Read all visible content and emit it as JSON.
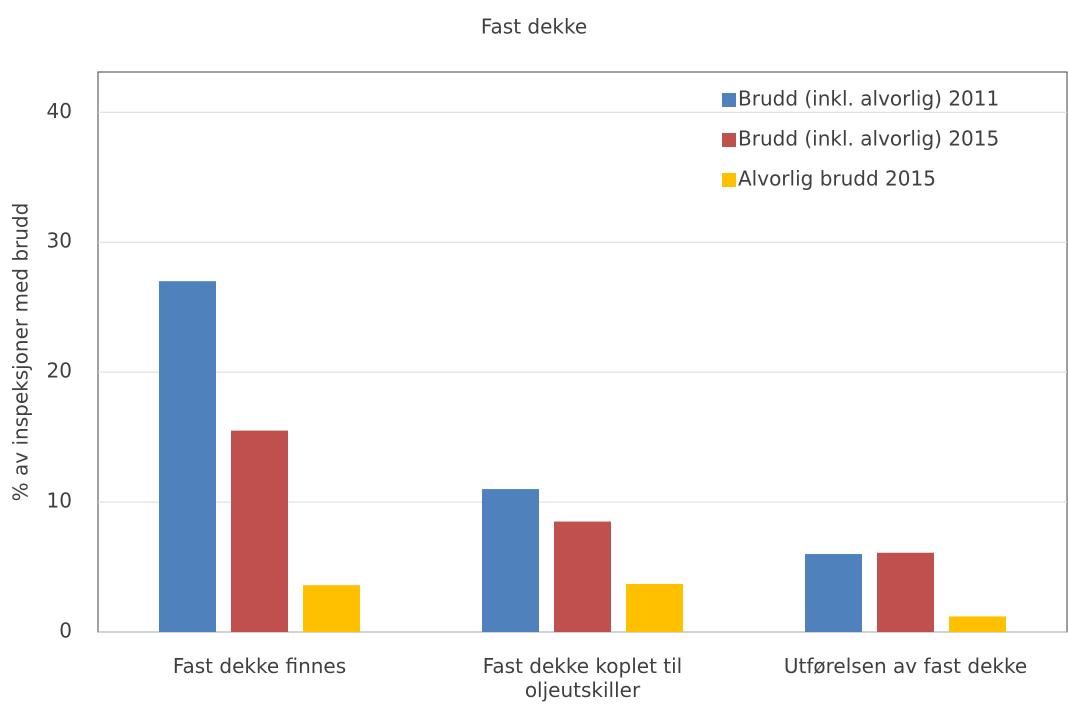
{
  "chart_data": {
    "type": "bar",
    "title": "Fast dekke",
    "y_label": "% av inspeksjoner med brudd",
    "categories": [
      "Fast dekke finnes",
      "Fast dekke koplet til oljeutskiller",
      "Utførelsen av fast dekke"
    ],
    "series": [
      {
        "name": "Brudd (inkl. alvorlig) 2011",
        "color": "#4f81bd",
        "values": [
          27,
          11,
          6
        ]
      },
      {
        "name": "Brudd (inkl. alvorlig) 2015",
        "color": "#c0504d",
        "values": [
          15.5,
          8.5,
          6.1
        ]
      },
      {
        "name": "Alvorlig brudd 2015",
        "color": "#ffc000",
        "values": [
          3.6,
          3.7,
          1.2
        ]
      }
    ],
    "ylim": [
      0,
      43.1
    ],
    "yticks": [
      0,
      10,
      20,
      30,
      40
    ],
    "grid": true,
    "legend": "top-right"
  }
}
